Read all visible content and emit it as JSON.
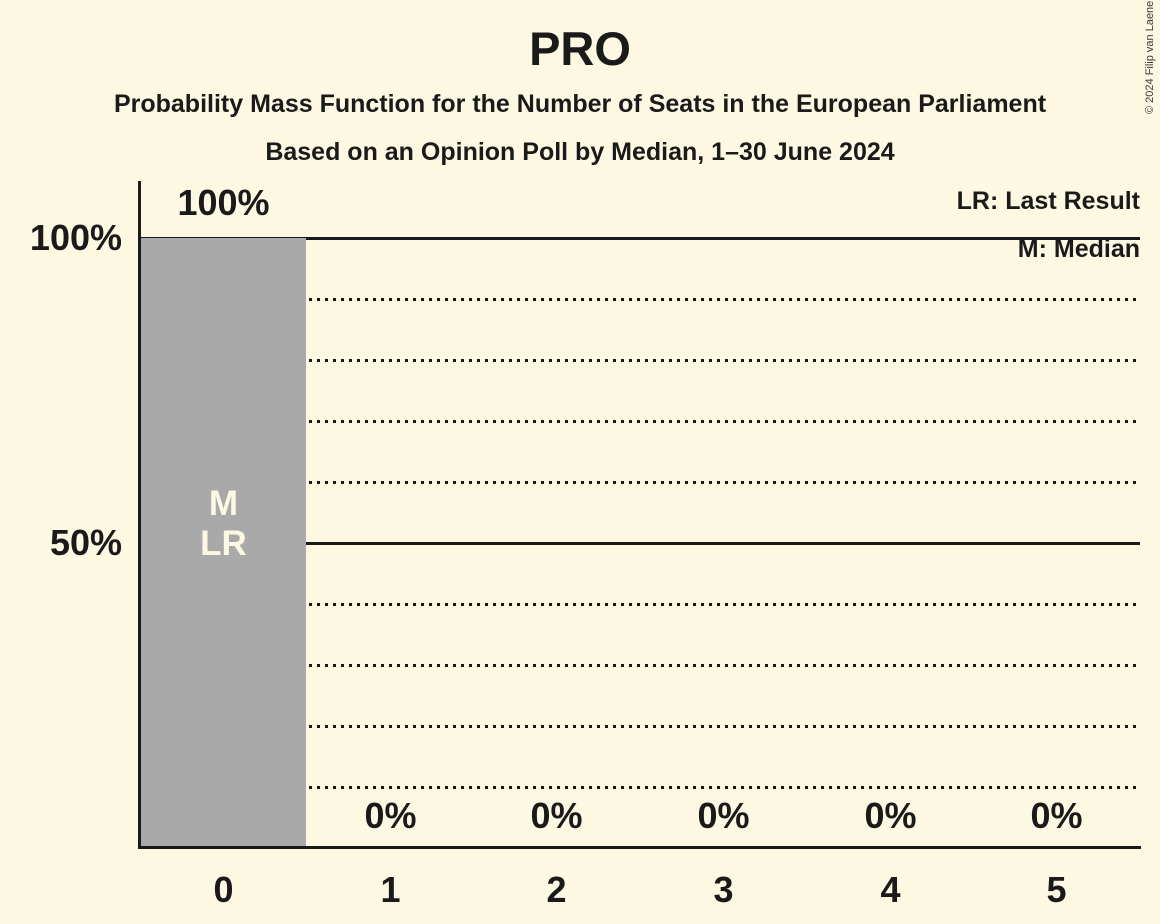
{
  "title": "PRO",
  "subtitles": [
    "Probability Mass Function for the Number of Seats in the European Parliament",
    "Based on an Opinion Poll by Median, 1–30 June 2024"
  ],
  "legend": {
    "lr": "LR: Last Result",
    "m": "M: Median"
  },
  "copyright": "© 2024 Filip van Laenen",
  "colors": {
    "background": "#fdf8e1",
    "bar": "#a9a9a9",
    "text": "#1a1a1a",
    "bar_text": "#fdf8e1"
  },
  "y_axis": {
    "label_100": "100%",
    "label_50": "50%"
  },
  "chart_data": {
    "type": "bar",
    "title": "PRO",
    "categories": [
      "0",
      "1",
      "2",
      "3",
      "4",
      "5"
    ],
    "values": [
      100,
      0,
      0,
      0,
      0,
      0
    ],
    "value_labels": [
      "100%",
      "0%",
      "0%",
      "0%",
      "0%",
      "0%"
    ],
    "ylim": [
      0,
      100
    ],
    "ytick_labels": [
      {
        "pct": 100,
        "label": "100%"
      },
      {
        "pct": 50,
        "label": "50%"
      }
    ],
    "gridlines": [
      {
        "pct": 100,
        "style": "solid"
      },
      {
        "pct": 90,
        "style": "dotted"
      },
      {
        "pct": 80,
        "style": "dotted"
      },
      {
        "pct": 70,
        "style": "dotted"
      },
      {
        "pct": 60,
        "style": "dotted"
      },
      {
        "pct": 50,
        "style": "solid"
      },
      {
        "pct": 40,
        "style": "dotted"
      },
      {
        "pct": 30,
        "style": "dotted"
      },
      {
        "pct": 20,
        "style": "dotted"
      },
      {
        "pct": 10,
        "style": "dotted"
      }
    ],
    "annotations": {
      "bar": "0",
      "lines": [
        "M",
        "LR"
      ]
    },
    "legend_position": "top-right",
    "bar_color": "#a9a9a9",
    "median_label": "M",
    "last_result_label": "LR"
  }
}
